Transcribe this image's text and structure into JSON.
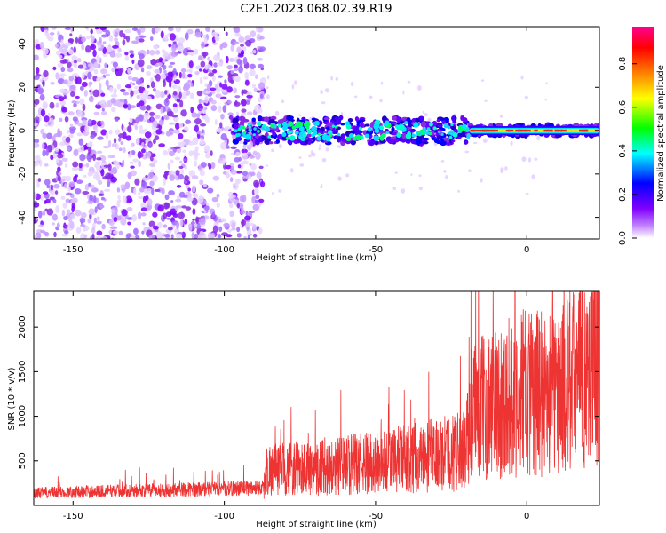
{
  "chart_data": [
    {
      "type": "heatmap",
      "title": "C2E1.2023.068.02.39.R19",
      "xlabel": "Height of straight line (km)",
      "ylabel": "Frequency (Hz)",
      "xlim": [
        -163,
        24
      ],
      "ylim": [
        -50,
        48
      ],
      "x_ticks": [
        -150,
        -100,
        -50,
        0
      ],
      "y_ticks": [
        -40,
        -20,
        0,
        20,
        40
      ],
      "colorbar": {
        "label": "Normalized spectral amplitude",
        "range": [
          0,
          0.97
        ],
        "ticks": [
          0.0,
          0.2,
          0.4,
          0.6,
          0.8
        ],
        "colormap": [
          "#ffffff",
          "#8000ff",
          "#0000ff",
          "#00ffff",
          "#00ff00",
          "#ffff00",
          "#ff8000",
          "#ff0000",
          "#ff0080"
        ]
      },
      "features": {
        "broadband_noise_x_range": [
          -163,
          -87
        ],
        "tone_band_x_range": [
          -97,
          24
        ],
        "tone_band_center_hz": 0,
        "tone_band_halfwidth_hz": 6,
        "strong_tone_x_range": [
          -19,
          24
        ]
      },
      "grid": false
    },
    {
      "type": "line",
      "xlabel": "Height of straight line (km)",
      "ylabel": "SNR (10 * v/v)",
      "xlim": [
        -163,
        24
      ],
      "ylim": [
        0,
        2400
      ],
      "x_ticks": [
        -150,
        -100,
        -50,
        0
      ],
      "y_ticks": [
        500,
        1000,
        1500,
        2000
      ],
      "series_color": "#ee3333",
      "trend": {
        "x": [
          -163,
          -140,
          -110,
          -87,
          -86,
          -70,
          -50,
          -30,
          -20,
          -19,
          -10,
          0,
          10,
          20,
          24
        ],
        "y": [
          140,
          160,
          180,
          200,
          400,
          420,
          480,
          560,
          620,
          1050,
          1150,
          1280,
          1250,
          1500,
          1600
        ]
      },
      "grid": false
    }
  ]
}
